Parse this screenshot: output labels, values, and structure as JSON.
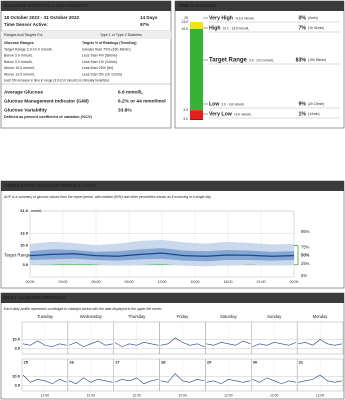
{
  "stats": {
    "title": "GLUCOSE STATISTICS AND TARGETS",
    "period": "18 October 2022 - 31 October 2022",
    "days": "14 Days",
    "sensor_label": "Time Sensor Active:",
    "sensor_value": "97%",
    "targets": {
      "header_left": "Ranges And Targets For",
      "header_right": "Type 1 or Type 2 Diabetes",
      "col_left": "Glucose Ranges",
      "col_right": "Targets % of Readings (Time/Day)",
      "rows": [
        [
          "Target Range 3.9-10.0 mmol/L",
          "Greater than 70% (16h 48min)"
        ],
        [
          "Below 3.9 mmol/L",
          "Less than 4% (58min)"
        ],
        [
          "Below 3.0 mmol/L",
          "Less than 1% (14min)"
        ],
        [
          "Above 10.0 mmol/L",
          "Less than 25% (6h)"
        ],
        [
          "Above 13.9 mmol/L",
          "Less than 5% (1h 12min)"
        ]
      ],
      "note": "Each 5% increase in time in range (3.9-10.0 mmol/L) is clinically beneficial."
    },
    "metrics": [
      {
        "label": "Average Glucose",
        "value": "6.6 mmol/L"
      },
      {
        "label": "Glucose Management Indicator (GMI)",
        "value": "6.2% or 44 mmol/mol"
      },
      {
        "label": "Glucose Variability",
        "value": "33.8%"
      }
    ],
    "metrics_note": "Defined as percent coefficient of variation (%CV)"
  },
  "time_in_ranges": {
    "title": "TIME IN RANGES",
    "bar_ticks": [
      "25",
      "13.9",
      "10.0",
      "3.9",
      "3.0"
    ],
    "ranges": [
      {
        "name": "Very High",
        "range": ">13.9 mmol/L",
        "percent": 0,
        "percent_label": "0%",
        "time": "(0min)",
        "color": "#f08c00"
      },
      {
        "name": "High",
        "range": "10.1 - 13.9 mmol/L",
        "percent": 7,
        "percent_label": "7%",
        "time": "(1h 41min)",
        "color": "#f5e31a"
      },
      {
        "name": "Target Range",
        "range": "3.9 - 10.0 mmol/L",
        "percent": 83,
        "percent_label": "83%",
        "time": "(19h 55min)",
        "color": "#36b237"
      },
      {
        "name": "Low",
        "range": "3.0 - 3.8 mmol/L",
        "percent": 9,
        "percent_label": "9%",
        "time": "(2h 10min)",
        "color": "#e3211c"
      },
      {
        "name": "Very Low",
        "range": "<3.0 mmol/L",
        "percent": 1,
        "percent_label": "1%",
        "time": "(14min)",
        "color": "#9b1218"
      }
    ]
  },
  "agp": {
    "title": "AMBULATORY GLUCOSE PROFILE (AGP)",
    "description": "AGP is a summary of glucose values from the report period, with median (50%) and other percentiles shown as if occurring in a single day.",
    "y_unit": "mmol/L",
    "ylim": [
      0,
      21
    ],
    "yticks": [
      {
        "value": 21,
        "label": "21.0"
      },
      13.9,
      {
        "value": 10,
        "label": "10.0"
      },
      3.9
    ],
    "target": [
      3.9,
      10
    ],
    "target_label": "Target Range",
    "xlim": [
      0,
      24
    ],
    "xticks": [
      {
        "value": 0,
        "label": "00:00"
      },
      {
        "value": 3,
        "label": "03:00"
      },
      {
        "value": 6,
        "label": "06:00"
      },
      {
        "value": 9,
        "label": "09:00"
      },
      {
        "value": 12,
        "label": "12:00"
      },
      {
        "value": 15,
        "label": "15:00"
      },
      {
        "value": 18,
        "label": "18:00"
      },
      {
        "value": 21,
        "label": "21:00"
      },
      {
        "value": 24,
        "label": "00:00"
      }
    ],
    "x": [
      0,
      2,
      4,
      6,
      8,
      10,
      12,
      14,
      16,
      18,
      20,
      22,
      24
    ],
    "series": [
      {
        "name": "95%",
        "values": [
          10.5,
          11.2,
          10.8,
          10.2,
          10.6,
          11.5,
          11.8,
          11.0,
          10.6,
          11.2,
          10.8,
          10.4,
          10.5
        ]
      },
      {
        "name": "75%",
        "values": [
          8.2,
          8.8,
          8.6,
          8.0,
          8.2,
          8.8,
          9.2,
          8.4,
          8.2,
          8.6,
          8.4,
          8.0,
          8.2
        ]
      },
      {
        "name": "50%",
        "values": [
          6.8,
          7.2,
          7.4,
          6.8,
          6.6,
          7.2,
          7.6,
          6.8,
          6.6,
          7.0,
          6.9,
          6.6,
          6.8
        ]
      },
      {
        "name": "25%",
        "values": [
          5.4,
          5.6,
          5.8,
          5.4,
          5.2,
          5.6,
          5.8,
          5.2,
          5.0,
          5.4,
          5.4,
          5.2,
          5.4
        ]
      },
      {
        "name": "5%",
        "values": [
          3.8,
          3.9,
          4.2,
          3.9,
          3.6,
          3.8,
          4.0,
          3.6,
          3.4,
          3.7,
          3.9,
          3.7,
          3.8
        ]
      }
    ]
  },
  "daily": {
    "title": "DAILY GLUCOSE PROFILES",
    "description": "Each daily profile represents a midnight to midnight period with the date displayed in the upper left corner.",
    "weekdays": [
      "Tuesday",
      "Wednesday",
      "Thursday",
      "Friday",
      "Saturday",
      "Sunday",
      "Monday"
    ],
    "ylim": [
      0,
      22
    ],
    "yticks": [
      {
        "value": 10,
        "label": "10.0"
      },
      3.9
    ],
    "x_label": "12:00",
    "weeks": [
      {
        "dates": [
          null,
          null,
          null,
          null,
          null,
          null,
          null
        ],
        "values": [
          [
            7,
            6,
            9,
            6,
            5,
            7,
            6
          ],
          [
            6,
            8,
            5,
            7,
            9,
            6,
            7
          ],
          [
            8,
            5,
            7,
            6,
            8,
            7,
            6
          ],
          [
            6,
            7,
            11,
            8,
            6,
            7,
            5
          ],
          [
            7,
            6,
            8,
            7,
            6,
            9,
            7
          ],
          [
            5,
            7,
            6,
            8,
            7,
            6,
            8
          ],
          [
            7,
            8,
            6,
            10,
            7,
            6,
            7
          ]
        ]
      },
      {
        "dates": [
          "25",
          "26",
          "27",
          "28",
          "29",
          "30",
          "31"
        ],
        "values": [
          [
            11,
            6,
            8,
            7,
            5,
            8,
            6
          ],
          [
            7,
            5,
            9,
            6,
            8,
            7,
            6
          ],
          [
            6,
            8,
            7,
            9,
            5,
            7,
            8
          ],
          [
            7,
            6,
            12,
            7,
            6,
            8,
            7
          ],
          [
            6,
            7,
            5,
            8,
            7,
            6,
            7
          ],
          [
            8,
            6,
            9,
            7,
            5,
            7,
            6
          ],
          [
            6,
            7,
            8,
            11,
            7,
            6,
            7
          ]
        ]
      }
    ]
  }
}
